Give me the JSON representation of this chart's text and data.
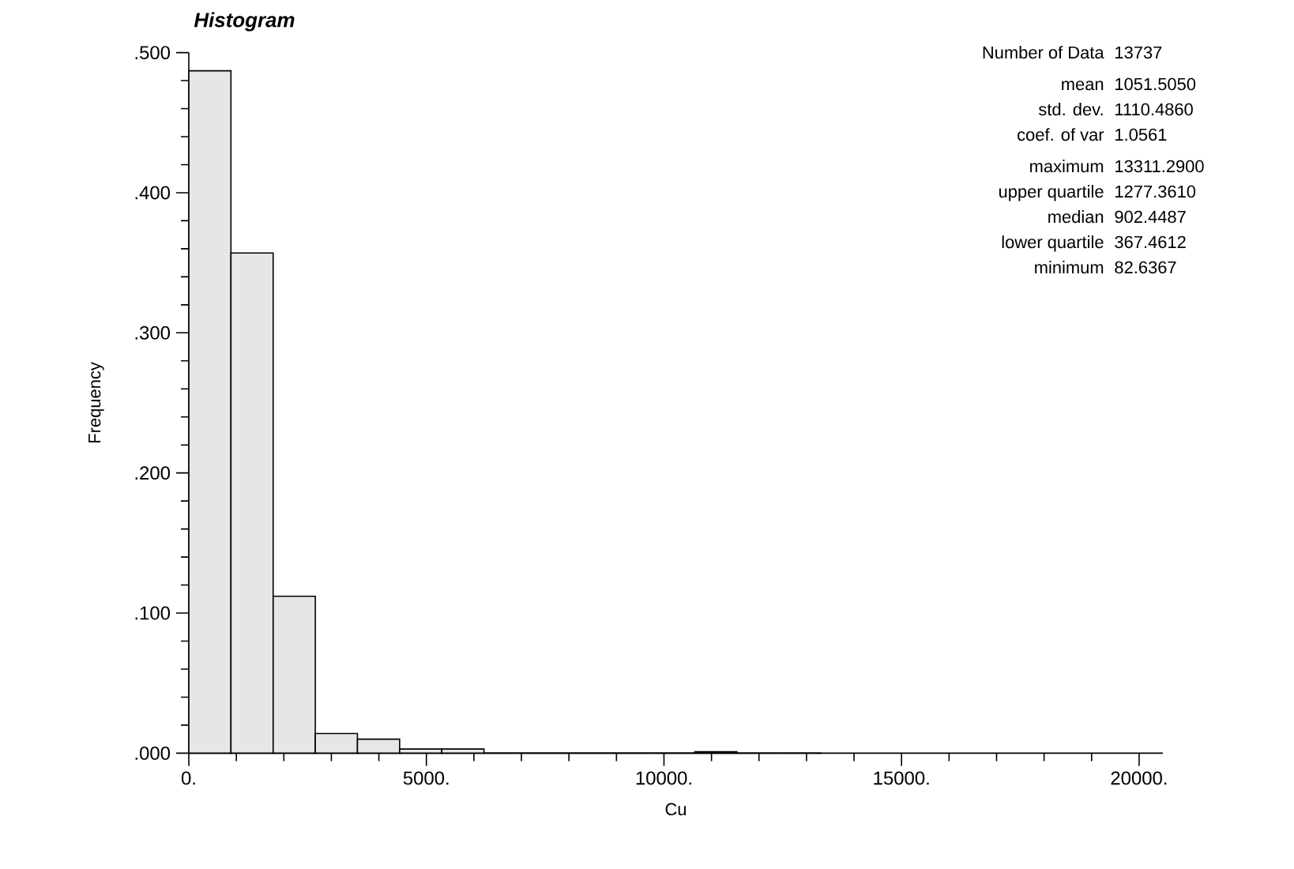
{
  "chart_data": {
    "type": "histogram",
    "title": "Histogram",
    "xlabel": "Cu",
    "ylabel": "Frequency",
    "bins": [
      0,
      887,
      1775,
      2662,
      3549,
      4437,
      5324,
      6212,
      7099,
      7986,
      8874,
      9761,
      10648,
      11536,
      12423,
      13311
    ],
    "values": [
      0.487,
      0.357,
      0.112,
      0.014,
      0.01,
      0.003,
      0.003,
      0,
      0,
      0,
      0,
      0,
      0.001,
      0,
      0
    ],
    "color": "#e6e6e6",
    "xlim": [
      0,
      20500
    ],
    "ylim": [
      0,
      0.5
    ],
    "xticks": [
      {
        "value": 0,
        "label": "0."
      },
      {
        "value": 5000,
        "label": "5000."
      },
      {
        "value": 10000,
        "label": "10000."
      },
      {
        "value": 15000,
        "label": "15000."
      },
      {
        "value": 20000,
        "label": "20000."
      }
    ],
    "yticks": [
      {
        "value": 0,
        "label": ".000"
      },
      {
        "value": 0.1,
        "label": ".100"
      },
      {
        "value": 0.2,
        "label": ".200"
      },
      {
        "value": 0.3,
        "label": ".300"
      },
      {
        "value": 0.4,
        "label": ".400"
      },
      {
        "value": 0.5,
        "label": ".500"
      }
    ],
    "annotations": [
      "Number of Data",
      "13737",
      "mean",
      "1051.5050",
      "std. dev.",
      "1110.4860",
      "coef. of var",
      "1.0561",
      "maximum",
      "13311.2900",
      "upper quartile",
      "1277.3610",
      "median",
      "902.4487",
      "lower quartile",
      "367.4612",
      "minimum",
      "82.6367"
    ]
  }
}
